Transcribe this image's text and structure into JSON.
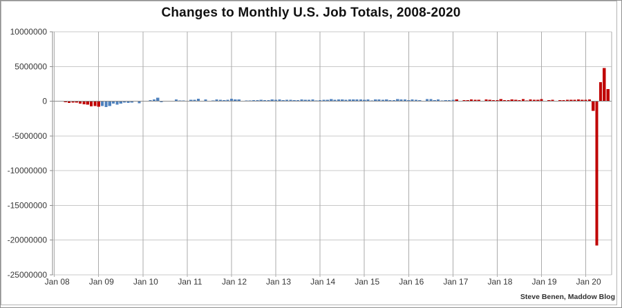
{
  "header": {
    "title": "Changes to Monthly U.S. Job Totals, 2008-2020"
  },
  "footer": {
    "attribution": "Steve Benen, Maddow Blog"
  },
  "chart_data": {
    "type": "bar",
    "title": "Changes to Monthly U.S. Job Totals, 2008-2020",
    "xlabel": "",
    "ylabel": "",
    "x_start": "Jan 2008",
    "x_end": "Jul 2020",
    "ylim": [
      -25000000,
      10000000
    ],
    "grid": true,
    "legend": false,
    "y_ticks": [
      10000000,
      5000000,
      0,
      -5000000,
      -10000000,
      -15000000,
      -20000000,
      -25000000
    ],
    "y_tick_labels": [
      "10000000",
      "5000000",
      "0",
      "-5000000",
      "-10000000",
      "-15000000",
      "-20000000",
      "-25000000"
    ],
    "x_tick_labels": [
      "Jan 08",
      "Jan 09",
      "Jan 10",
      "Jan 11",
      "Jan 12",
      "Jan 13",
      "Jan 14",
      "Jan 15",
      "Jan 16",
      "Jan 17",
      "Jan 18",
      "Jan 19",
      "Jan 20"
    ],
    "x_tick_month_indices": [
      0,
      12,
      24,
      36,
      48,
      60,
      72,
      84,
      96,
      108,
      120,
      132,
      144
    ],
    "colors": {
      "republican_bar": "#c00000",
      "democrat_bar": "#4f81bd",
      "gridline_h": "#c8c8c8",
      "gridline_v": "#ababab",
      "zero_line": "#8a8a8a",
      "axis_line": "#8a8a8a",
      "frame": "#b4b4b4"
    },
    "color_segments": [
      {
        "start_index": 0,
        "end_index": 12,
        "color_key": "republican_bar"
      },
      {
        "start_index": 13,
        "end_index": 108,
        "color_key": "democrat_bar"
      },
      {
        "start_index": 109,
        "end_index": 150,
        "color_key": "republican_bar"
      }
    ],
    "values": [
      -10000,
      -50000,
      -33000,
      -149000,
      -231000,
      -193000,
      -210000,
      -334000,
      -458000,
      -481000,
      -727000,
      -706000,
      -791000,
      -703000,
      -823000,
      -686000,
      -351000,
      -470000,
      -329000,
      -212000,
      -219000,
      -200000,
      -7000,
      -283000,
      18000,
      -50000,
      156000,
      251000,
      516000,
      -122000,
      -61000,
      -42000,
      -57000,
      277000,
      123000,
      88000,
      42000,
      188000,
      225000,
      346000,
      73000,
      235000,
      70000,
      107000,
      246000,
      202000,
      146000,
      207000,
      338000,
      257000,
      239000,
      75000,
      115000,
      87000,
      143000,
      181000,
      196000,
      146000,
      132000,
      243000,
      197000,
      280000,
      141000,
      203000,
      216000,
      146000,
      137000,
      246000,
      185000,
      189000,
      274000,
      84000,
      144000,
      222000,
      203000,
      304000,
      229000,
      267000,
      243000,
      203000,
      271000,
      243000,
      261000,
      256000,
      201000,
      266000,
      84000,
      251000,
      273000,
      228000,
      277000,
      150000,
      149000,
      295000,
      280000,
      271000,
      168000,
      233000,
      186000,
      144000,
      43000,
      297000,
      291000,
      176000,
      249000,
      124000,
      164000,
      155000,
      216000,
      232000,
      50000,
      175000,
      155000,
      239000,
      190000,
      208000,
      18000,
      261000,
      216000,
      175000,
      176000,
      324000,
      155000,
      175000,
      268000,
      208000,
      178000,
      282000,
      108000,
      277000,
      196000,
      227000,
      312000,
      56000,
      153000,
      216000,
      62000,
      178000,
      166000,
      219000,
      193000,
      185000,
      261000,
      184000,
      214000,
      251000,
      -1373000,
      -20787000,
      2725000,
      4791000,
      1763000
    ]
  }
}
